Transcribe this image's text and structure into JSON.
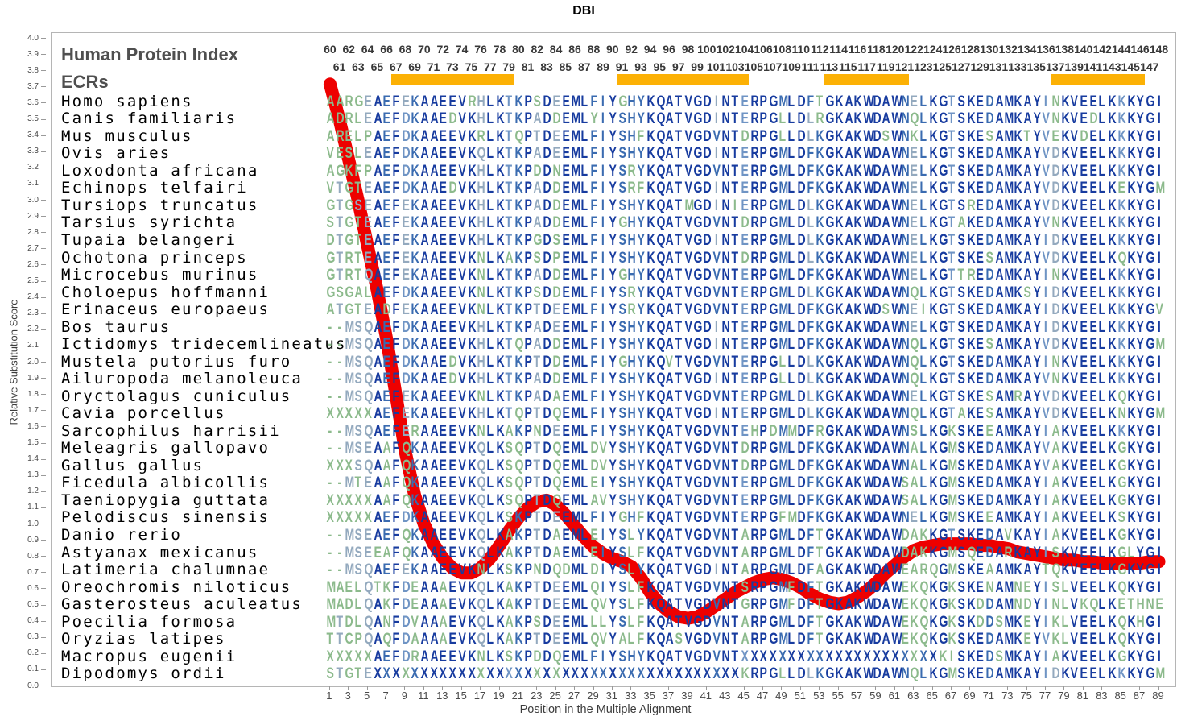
{
  "title": "DBI",
  "header": {
    "human_protein_index_label": "Human Protein Index",
    "ecrs_label": "ECRs"
  },
  "axes": {
    "y_label": "Relative Substitution Score",
    "x_label": "Position in the Multiple Alignment",
    "y_min": 0.0,
    "y_max": 4.0,
    "y_tick_step": 0.1,
    "x_min": 1,
    "x_max": 89,
    "x_tick_step": 2
  },
  "human_index": {
    "start": 60,
    "end": 148
  },
  "ecrs": {
    "color": "#FCB105",
    "ranges": [
      {
        "start": 8,
        "end": 20
      },
      {
        "start": 32,
        "end": 45
      },
      {
        "start": 54,
        "end": 62
      },
      {
        "start": 78,
        "end": 87
      }
    ]
  },
  "alignment": {
    "num_positions": 89,
    "species": [
      {
        "name": "Homo sapiens",
        "seq": "AARGEAEFEKAAEEVRHLKTKPSDEEMLFIYGHYKQATVGDINTERPGMLDFTGKAKWDAWNELKGTSKEDAMKAYINKVEELKKKYGI"
      },
      {
        "name": "Canis familiaris",
        "seq": "ADRLEAEFDKAAEDVKHLKTKPADDEMLYIYSHYKQATVGDINTERPGLLDLRGKAKWDAWNQLKGTSKEDAMKAYVNKVEDLKKKYGI"
      },
      {
        "name": "Mus musculus",
        "seq": "ARELPAEFDKAAEEVKRLKTQPTDEEMLFIYSHFKQATVGDVNTDRPGLLDLKGKAKWDSWNKLKGTSKESAMKTYVEKVDELKKKYGI"
      },
      {
        "name": "Ovis aries",
        "seq": "VESLEAEFDKAAEEVKQLKTKPADEEMLFIYSHYKQATVGDINTERPGMLDFKGKAKWDAWNELKGTSKEDAMKAYVDKVEELKKKYGI"
      },
      {
        "name": "Loxodonta africana",
        "seq": "AGKFPAEFDKAAEEVKHLKTKPDDNEMLFIYSRYKQATVGDVNTERPGMLDFKGKAKWDAWNELKGTSKEDAMKAYVDKVEELKKKYGI"
      },
      {
        "name": "Echinops telfairi",
        "seq": "VTGTEAEFDKAAEDVKHLKTKPADDEMLFIYSRFKQATVGDINTERPGMLDFKGKAKWDAWNELKGTSKEDAMKAYVDKVEELKEKYGM"
      },
      {
        "name": "Tursiops truncatus",
        "seq": "GTGSEAEFEKAAEEVKHLKTKPADDEMLFIYSHYKQATMGDINIERPGMLDLKGKAKWDAWNELKGTSREDAMKAYVDKVEELKKKYGI"
      },
      {
        "name": "Tarsius syrichta",
        "seq": "STGTEAEFEKAAEEVKHLKTKPADDEMLFIYGHYKQATVGDVNTDRPGMLDLKGKAKWDAWNELKGTAKEDAMKAYVNKVEELKKKYGI"
      },
      {
        "name": "Tupaia belangeri",
        "seq": "DTGTEAEFEKAAEEVKHLKTKPGDSEMLFIYSHYKQATVGDINTERPGMLDLKGKAKWDAWNELKGTSKEDAMKAYIDKVEELKKKYGI"
      },
      {
        "name": "Ochotona princeps",
        "seq": "GTRTEAEFEKAAEEVKNLKAKPSDPEMLFIYSHYKQATVGDVNTDRPGMLDLKGKAKWDAWNELKGTSKESAMKAYVDKVEELKQKYGI"
      },
      {
        "name": "Microcebus murinus",
        "seq": "GTRTQAEFEKAAEEVKNLKTKPADDEMLFIYGHYKQATVGDVNTERPGMLDFKGKAKWDAWNELKGTTREDAMKAYINKVEELKKKYGI"
      },
      {
        "name": "Choloepus hoffmanni",
        "seq": "GSGALAEFDKAAEEVKNLKTKPSDDEMLFIYSRYKQATVGDVNTERPGMLDLKGKAKWDAWNQLKGTSKEDAMKSYIDKVEELKKKYGI"
      },
      {
        "name": "Erinaceus europaeus",
        "seq": "ATGTEADFEKAAEEVKNLKTKPTDEEMLFIYSRYKQATVGDVNTERPGMLDFKGKAKWDSWNEIKGTSKEDAMKAYIDKVEELKKKYGV"
      },
      {
        "name": "Bos taurus",
        "seq": "--MSQAEFDKAAEEVKHLKTKPADEEMLFIYSHYKQATVGDINTERPGMLDFKGKAKWDAWNELKGTSKEDAMKAYIDKVEELKKKYGI"
      },
      {
        "name": "Ictidomys tridecemlineatus",
        "seq": "--MSQAEFDKAAEEVKHLKTQPADDEMLFIYSHYKQATVGDINTERPGMLDFKGKAKWDAWNQLKGTSKESAMKAYVDKVEELKKKYGM"
      },
      {
        "name": "Mustela putorius furo",
        "seq": "--MSQAEFDKAAEDVKHLKTKPTDDEMLFIYGHYKQVTVGDVNTERPGLLDLKGKAKWDAWNQLKGTSKEDAMKAYINKVEELKKKYGI"
      },
      {
        "name": "Ailuropoda melanoleuca",
        "seq": "--MSQAEFDKAAEDVKHLKTKPADDEMLFIYSHYKQATVGDINTERPGLLDLKGKAKWDAWNQLKGTSKEDAMKAYVNKVEELKKKYGI"
      },
      {
        "name": "Oryctolagus cuniculus",
        "seq": "--MSQAEFEKAAEEVKNLKTKPADAEMLFIYSHYKQATVGDVNTERPGMLDLKGKAKWDAWNELKGTSKESAMRAYVDKVEELKQKYGI"
      },
      {
        "name": "Cavia porcellus",
        "seq": "XXXXXAEFEKAAEEVKHLKTQPTDQEMLFIYSHYKQATVGDINTERPGMLDLKGKAKWDAWNQLKGTAKESAMKAYVDKVEELKNKYGM"
      },
      {
        "name": "Sarcophilus harrisii",
        "seq": "--MSQAEFERAAEEVKNLKAKPNDEEMLFIYSHYKQATVGDVNTEHPDMMDFRGKAKWDAWNSLKGKSKEEAMKAYIAKVEELKKKYGI"
      },
      {
        "name": "Meleagris gallopavo",
        "seq": "--MSEAAFQKAAEEVKQLKSQPTDQEMLDVYSHYKQATVGDVNTDRPGMLDFKGKAKWDAWNALKGMSKEDAMKAYVAKVEELKGKYGI"
      },
      {
        "name": "Gallus gallus",
        "seq": "XXXSQAAFQKAAEEVKQLKSQPTDQEMLDVYSHYKQATVGDVNTDRPGMLDFKGKAKWDAWNALKGMSKEDAMKAYVAKVEELKGKYGI"
      },
      {
        "name": "Ficedula albicollis",
        "seq": "--MTEAAFQKAAEEVKQLKSQPTDQEMLEIYSHYKQATVGDVNTERPGMLDFKGKAKWDAWSALKGMSKEDAMKAYIAKVEELKGKYGI"
      },
      {
        "name": "Taeniopygia guttata",
        "seq": "XXXXXAAFQKAAEEVKQLKSQPTDQEMLAVYSHYKQATVGDVNTERPGMLDFKGKAKWDAWSALKGMSKEDAMKAYIAKVEELKGKYGI"
      },
      {
        "name": "Pelodiscus sinensis",
        "seq": "XXXXXAEFDKAAEEVKQLKSKPTDEEMLFIYGHFKQATVGDVNTERPGFMDFKGKAKWDAWNELKGMSKEEAMKAYIAKVEELKSKYGI"
      },
      {
        "name": "Danio rerio",
        "seq": "--MSEAEFQKAAEEVKQLKAKPTDAEMLEIYSLYKQATVGDVNTARPGMLDFTGKAKWDAWDAKKGTSKEDAVKAYIAKVEELKGKYGI"
      },
      {
        "name": "Astyanax mexicanus",
        "seq": "--MSEEAFQKAAEEVKQLKAKPTDAEMLEIYSLFKQATVGDVNTARPGMLDFTGKAKWDAWDAKKGMSQEDARKAYISKVEELKGLYGI"
      },
      {
        "name": "Latimeria chalumnae",
        "seq": "--MSQAEFEKAAEEVKNLKSKPNDQDMLDIYSLYKQATVGDINTARPGMLDFAGKAKWDAWEARQGMSKEAAMKAYTQKVEELKGKYGI"
      },
      {
        "name": "Oreochromis niloticus",
        "seq": "MAELQTKFDEAAAEVKQLKAKPTDEEMLQIYSLFKQATVGDVNTSRPGMFDFTGKAKWDAWEKQKGKSKENAMNEYISLVEELKQKYGI"
      },
      {
        "name": "Gasterosteus aculeatus",
        "seq": "MADLQAKFDEAAAEVKQLKAKPTDEEMLQVYSLFKQATVGDVNTGRPGMFDFTGKAKWDAWEKQKGKSKDDAMNDYINLVKQLKETHNE"
      },
      {
        "name": "Poecilia formosa",
        "seq": "MTDLQANFDVAAAEVKQLKAKPSDEEMLLLYSLFKQATVGDVNTARPGMLDFTGKAKWDAWEKQKGKSKDDSMKEYIKLVEELKQKHGI"
      },
      {
        "name": "Oryzias latipes",
        "seq": "TTCPQAQFDAAAAEVKQLKAKPTDEEMLQVYALFKQASVGDVNTARPGMLDFTGKAKWDAWEKQKGKSKEDAMKEYVKLVEELKQKYGI"
      },
      {
        "name": "Macropus eugenii",
        "seq": "XXXXXAEFDRAAEEVKNLKSKPDDQEMLFIYSHYKQATVGDVNTXXXXXXXXXXXXXXXXXXXXXKISKEDSMKAYIAKVEELKGKYGI"
      },
      {
        "name": "Dipodomys ordii",
        "seq": "STGTEXXXXXXXXXXXXXXXXXXXXXXXXXXXXXXXXXXXXXXXKRPGLLDLKGKAKWDAWNQLKGMSKEDAMKAYIDKVEELKKKYGM"
      }
    ]
  },
  "colors": {
    "curve": "#EE0000",
    "ecr": "#FCB105",
    "axis_text": "#4a4a4a",
    "header_text": "#4f4f4f",
    "species_text": "#000000",
    "gap_color": "#8CBA8C",
    "conservation_scale": [
      {
        "min_freq": 0.82,
        "color": "#173B9F"
      },
      {
        "min_freq": 0.6,
        "color": "#3A6BB0"
      },
      {
        "min_freq": 0.42,
        "color": "#6F94C4"
      },
      {
        "min_freq": 0.27,
        "color": "#93A9BE"
      },
      {
        "min_freq": 0.0,
        "color": "#8CBA8C"
      }
    ]
  },
  "chart_data": {
    "type": "line",
    "title": "DBI",
    "xlabel": "Position in the Multiple Alignment",
    "ylabel": "Relative Substitution Score",
    "xlim": [
      1,
      89
    ],
    "ylim": [
      0.0,
      4.0
    ],
    "grid": false,
    "legend": "none",
    "annotations": "Orange ECR bars at alignment positions 8-20, 32-45, 54-62, 78-87; human protein index 60-148 shown above alignment",
    "series": [
      {
        "name": "Relative Substitution Score",
        "color": "#EE0000",
        "x_start": 1,
        "values": [
          3.72,
          3.5,
          3.25,
          3.0,
          2.72,
          2.45,
          2.15,
          1.8,
          1.45,
          1.18,
          1.0,
          0.88,
          0.79,
          0.73,
          0.7,
          0.7,
          0.73,
          0.79,
          0.87,
          0.96,
          1.04,
          1.1,
          1.14,
          1.15,
          1.12,
          1.06,
          0.99,
          0.92,
          0.86,
          0.82,
          0.79,
          0.77,
          0.74,
          0.67,
          0.58,
          0.51,
          0.46,
          0.43,
          0.42,
          0.43,
          0.46,
          0.5,
          0.54,
          0.58,
          0.61,
          0.64,
          0.66,
          0.67,
          0.66,
          0.64,
          0.61,
          0.57,
          0.54,
          0.52,
          0.51,
          0.52,
          0.55,
          0.59,
          0.64,
          0.7,
          0.75,
          0.8,
          0.84,
          0.86,
          0.87,
          0.88,
          0.88,
          0.88,
          0.88,
          0.87,
          0.87,
          0.86,
          0.85,
          0.83,
          0.82,
          0.81,
          0.8,
          0.79,
          0.78,
          0.78,
          0.77,
          0.77,
          0.76,
          0.76,
          0.76,
          0.76,
          0.76,
          0.77,
          0.77
        ]
      }
    ]
  }
}
